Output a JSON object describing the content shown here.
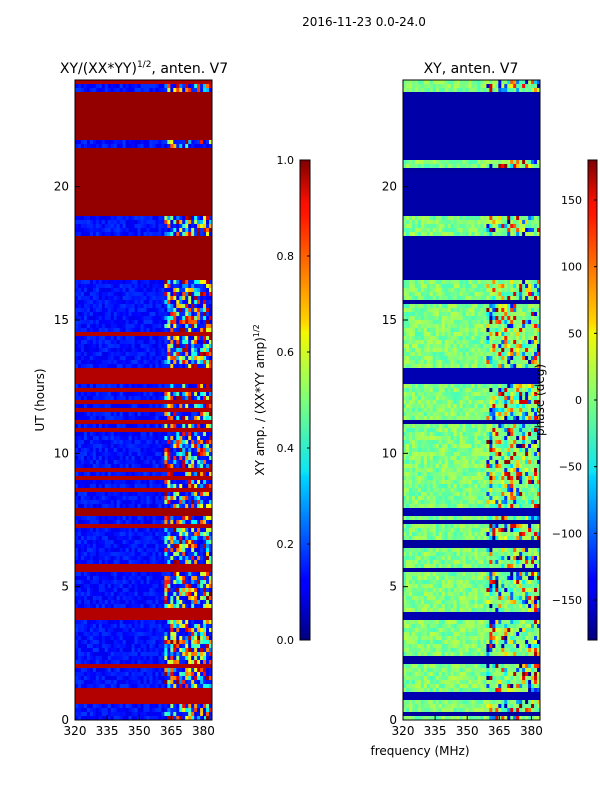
{
  "figure": {
    "suptitle": "2016-11-23 0.0-24.0",
    "shared_xlabel": "frequency (MHz)"
  },
  "chart_data": [
    {
      "type": "heatmap",
      "title_base": "XY/(XX*YY)",
      "title_exp": "1/2",
      "title_tail": ", anten. V7",
      "xlabel": "frequency (MHz)",
      "ylabel": "UT (hours)",
      "xlim": [
        320,
        384
      ],
      "ylim": [
        0,
        24
      ],
      "xticks": [
        320,
        335,
        350,
        365,
        380
      ],
      "yticks": [
        0,
        5,
        10,
        15,
        20
      ],
      "colorbar": {
        "label_base": "XY amp. / (XX*YY amp)",
        "label_exp": "1/2",
        "range": [
          0.0,
          1.0
        ],
        "ticks": [
          "0.0",
          "0.2",
          "0.4",
          "0.6",
          "0.8",
          "1.0"
        ],
        "tick_values": [
          0.0,
          0.2,
          0.4,
          0.6,
          0.8,
          1.0
        ]
      },
      "bands": [
        {
          "from": 0.0,
          "to": 0.6,
          "level": 0.08
        },
        {
          "from": 0.6,
          "to": 1.2,
          "level": 0.95
        },
        {
          "from": 1.2,
          "to": 3.8,
          "level": 0.1
        },
        {
          "from": 3.8,
          "to": 4.0,
          "level": 0.95
        },
        {
          "from": 4.0,
          "to": 7.6,
          "level": 0.1
        },
        {
          "from": 7.6,
          "to": 7.9,
          "level": 0.97
        },
        {
          "from": 7.9,
          "to": 12.6,
          "level": 0.12
        },
        {
          "from": 12.6,
          "to": 13.2,
          "level": 0.95
        },
        {
          "from": 13.2,
          "to": 16.5,
          "level": 0.1
        },
        {
          "from": 16.5,
          "to": 18.2,
          "level": 0.98
        },
        {
          "from": 18.2,
          "to": 18.9,
          "level": 0.3
        },
        {
          "from": 18.9,
          "to": 21.5,
          "level": 0.98
        },
        {
          "from": 21.5,
          "to": 21.8,
          "level": 0.3
        },
        {
          "from": 21.8,
          "to": 23.6,
          "level": 0.98
        },
        {
          "from": 23.6,
          "to": 24.0,
          "level": 0.2
        }
      ]
    },
    {
      "type": "heatmap",
      "title": "XY, anten. V7",
      "xlabel": "frequency (MHz)",
      "ylabel": "",
      "xlim": [
        320,
        384
      ],
      "ylim": [
        0,
        24
      ],
      "xticks": [
        320,
        335,
        350,
        365,
        380
      ],
      "yticks": [
        0,
        5,
        10,
        15,
        20
      ],
      "colorbar": {
        "label": "phase (deg)",
        "range": [
          -180,
          180
        ],
        "ticks": [
          "150",
          "100",
          "50",
          "0",
          "−50",
          "−100",
          "−150"
        ],
        "tick_values": [
          150,
          100,
          50,
          0,
          -50,
          -100,
          -150
        ]
      },
      "bands": [
        {
          "from": 0.0,
          "to": 0.8,
          "level": 0.55
        },
        {
          "from": 0.8,
          "to": 1.1,
          "level": 0.05
        },
        {
          "from": 1.1,
          "to": 3.7,
          "level": 0.5
        },
        {
          "from": 3.7,
          "to": 4.0,
          "level": 0.05
        },
        {
          "from": 4.0,
          "to": 7.6,
          "level": 0.5
        },
        {
          "from": 7.6,
          "to": 7.9,
          "level": 0.05
        },
        {
          "from": 7.9,
          "to": 12.6,
          "level": 0.5
        },
        {
          "from": 12.6,
          "to": 13.2,
          "level": 0.05
        },
        {
          "from": 13.2,
          "to": 16.5,
          "level": 0.5
        },
        {
          "from": 16.5,
          "to": 18.2,
          "level": 0.04
        },
        {
          "from": 18.2,
          "to": 18.9,
          "level": 0.45
        },
        {
          "from": 18.9,
          "to": 20.6,
          "level": 0.04
        },
        {
          "from": 20.6,
          "to": 21.0,
          "level": 0.5
        },
        {
          "from": 21.0,
          "to": 23.5,
          "level": 0.04
        },
        {
          "from": 23.5,
          "to": 24.0,
          "level": 0.5
        }
      ]
    }
  ]
}
